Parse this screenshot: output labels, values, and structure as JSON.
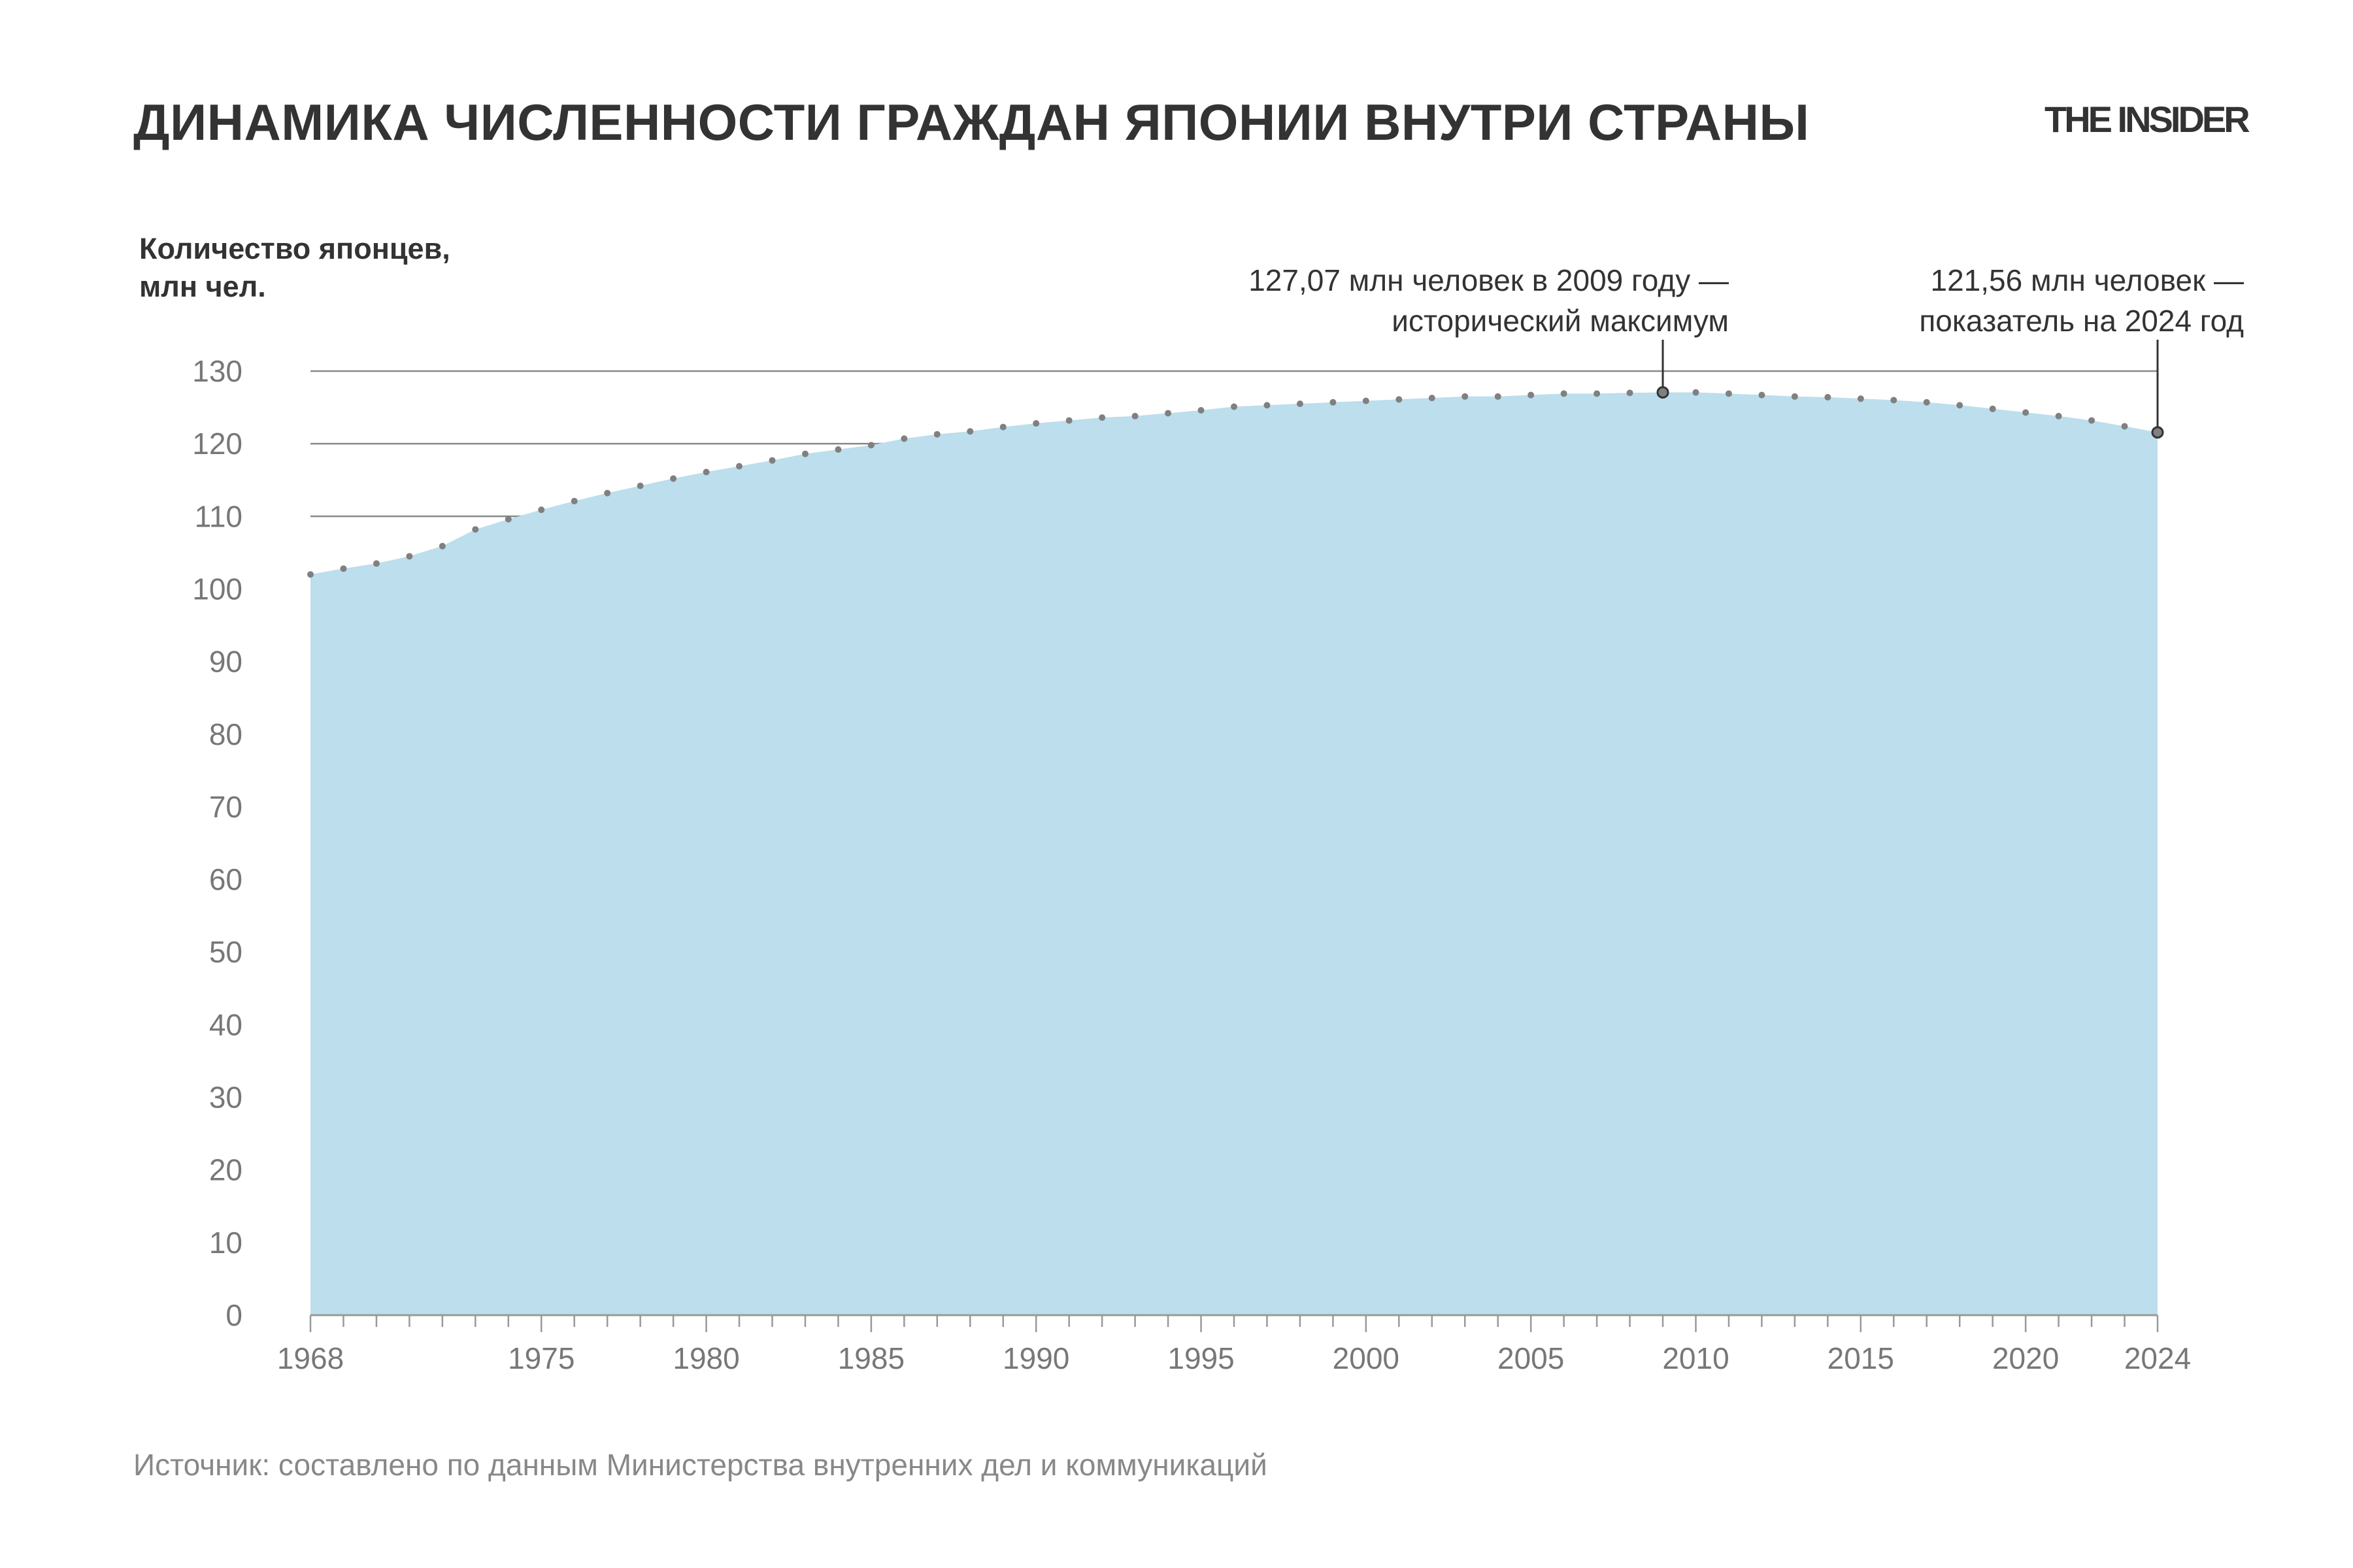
{
  "title": "ДИНАМИКА ЧИСЛЕННОСТИ ГРАЖДАН ЯПОНИИ ВНУТРИ СТРАНЫ",
  "logo": "THE INSIDER",
  "source": "Источник: составлено по данным Министерства внутренних дел и коммуникаций",
  "chart_data": {
    "type": "area",
    "ylabel_lines": [
      "Количество японцев,",
      "млн чел."
    ],
    "ylim": [
      0,
      130
    ],
    "yticks": [
      0,
      10,
      20,
      30,
      40,
      50,
      60,
      70,
      80,
      90,
      100,
      110,
      120,
      130
    ],
    "xlim": [
      1968,
      2024
    ],
    "xtick_labels": [
      1968,
      1975,
      1980,
      1985,
      1990,
      1995,
      2000,
      2005,
      2010,
      2015,
      2020,
      2024
    ],
    "grid": "horizontal gridlines at 110, 120, 130",
    "fill_color": "#bcdeed",
    "marker_color": "#808080",
    "x": [
      1968,
      1969,
      1970,
      1971,
      1972,
      1973,
      1974,
      1975,
      1976,
      1977,
      1978,
      1979,
      1980,
      1981,
      1982,
      1983,
      1984,
      1985,
      1986,
      1987,
      1988,
      1989,
      1990,
      1991,
      1992,
      1993,
      1994,
      1995,
      1996,
      1997,
      1998,
      1999,
      2000,
      2001,
      2002,
      2003,
      2004,
      2005,
      2006,
      2007,
      2008,
      2009,
      2010,
      2011,
      2012,
      2013,
      2014,
      2015,
      2016,
      2017,
      2018,
      2019,
      2020,
      2021,
      2022,
      2023,
      2024
    ],
    "values": [
      102.0,
      102.8,
      103.5,
      104.5,
      105.9,
      108.2,
      109.6,
      110.9,
      112.1,
      113.2,
      114.2,
      115.2,
      116.1,
      116.9,
      117.7,
      118.6,
      119.2,
      119.8,
      120.7,
      121.3,
      121.7,
      122.3,
      122.8,
      123.2,
      123.6,
      123.8,
      124.2,
      124.6,
      125.1,
      125.3,
      125.5,
      125.7,
      125.9,
      126.1,
      126.3,
      126.5,
      126.5,
      126.7,
      126.9,
      126.9,
      127.0,
      127.07,
      127.06,
      126.9,
      126.7,
      126.5,
      126.4,
      126.2,
      126.0,
      125.7,
      125.3,
      124.8,
      124.3,
      123.8,
      123.2,
      122.4,
      121.56
    ],
    "annotations": [
      {
        "x": 2009,
        "y": 127.07,
        "lines": [
          "127,07 млн человек в 2009 году —",
          "исторический максимум"
        ]
      },
      {
        "x": 2024,
        "y": 121.56,
        "lines": [
          "121,56 млн человек —",
          "показатель на 2024 год"
        ]
      }
    ]
  }
}
